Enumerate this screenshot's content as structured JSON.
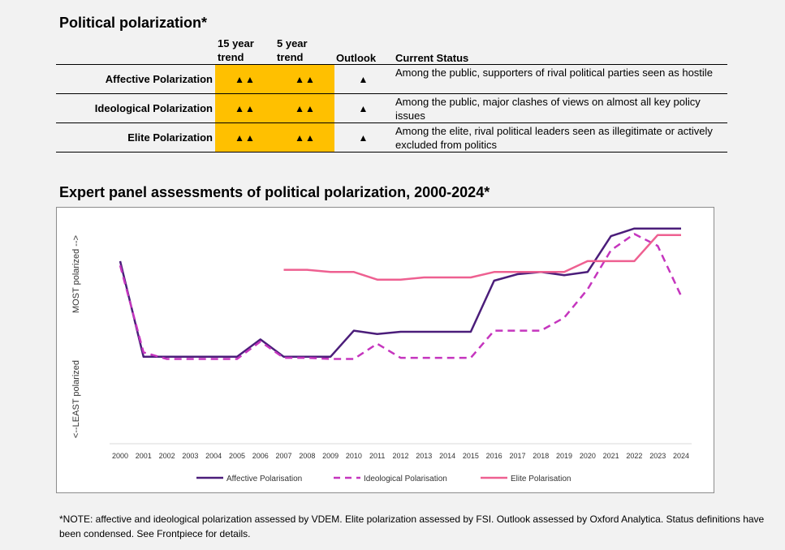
{
  "table": {
    "title": "Political polarization*",
    "headers": {
      "trend15": "15 year trend",
      "trend5": "5 year trend",
      "outlook": "Outlook",
      "status": "Current Status"
    },
    "colors": {
      "highlight": "#ffc000"
    },
    "rows": [
      {
        "label": "Affective Polarization",
        "trend15": "▲▲",
        "trend5": "▲▲",
        "outlook": "▲",
        "status": "Among the public, supporters of rival political parties seen as hostile"
      },
      {
        "label": "Ideological Polarization",
        "trend15": "▲▲",
        "trend5": "▲▲",
        "outlook": "▲",
        "status": "Among the public, major clashes of views on almost all key policy issues"
      },
      {
        "label": "Elite Polarization",
        "trend15": "▲▲",
        "trend5": "▲▲",
        "outlook": "▲",
        "status": "Among the elite, rival political leaders seen as illegitimate or actively excluded from politics"
      }
    ]
  },
  "chart_data": {
    "type": "line",
    "title": "Expert panel assessments of political polarization, 2000-2024*",
    "ylabel_top": "MOST polarized -->",
    "ylabel_bottom": "<--LEAST polarized",
    "x": [
      2000,
      2001,
      2002,
      2003,
      2004,
      2005,
      2006,
      2007,
      2008,
      2009,
      2010,
      2011,
      2012,
      2013,
      2014,
      2015,
      2016,
      2017,
      2018,
      2019,
      2020,
      2021,
      2022,
      2023,
      2024
    ],
    "ylim": [
      0,
      100
    ],
    "grid": false,
    "legend": "bottom",
    "series": [
      {
        "name": "Affective Polarisation",
        "color": "#4b1d7a",
        "dash": "solid",
        "values": [
          84,
          40,
          40,
          40,
          40,
          40,
          48,
          40,
          40,
          40,
          52,
          50.5,
          51.5,
          51.5,
          51.5,
          51.5,
          75,
          78,
          79,
          77.5,
          79,
          95.5,
          99,
          99,
          99
        ]
      },
      {
        "name": "Ideological Polarisation",
        "color": "#c535be",
        "dash": "dashed",
        "values": [
          82,
          42,
          39,
          39,
          39,
          39,
          47,
          39.5,
          39.5,
          39,
          39,
          46,
          39.5,
          39.5,
          39.5,
          39.5,
          52,
          52,
          52,
          58,
          71,
          89,
          96.5,
          91,
          68
        ]
      },
      {
        "name": "Elite Polarization",
        "color": "#ee6091",
        "dash": "solid",
        "values": [
          null,
          null,
          null,
          null,
          null,
          null,
          null,
          80,
          80,
          79,
          79,
          75.5,
          75.5,
          76.5,
          76.5,
          76.5,
          79,
          79,
          79,
          79,
          84,
          84,
          84,
          96,
          96
        ]
      }
    ]
  },
  "legend_labels": [
    "Affective Polarisation",
    "Ideological Polarisation",
    "Elite Polarisation"
  ],
  "note": "*NOTE: affective and ideological polarization assessed by VDEM. Elite polarization assessed by FSI. Outlook assessed by Oxford Analytica. Status definitions have been condensed. See Frontpiece for details."
}
